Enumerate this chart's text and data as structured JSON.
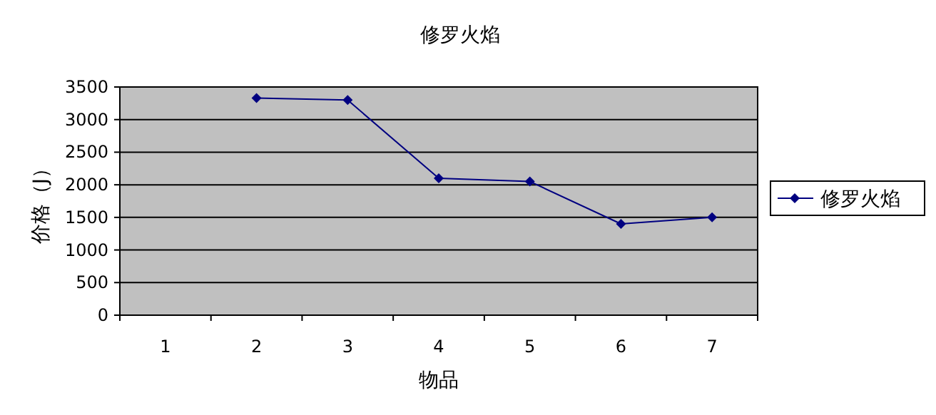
{
  "chart_data": {
    "type": "line",
    "title": "修罗火焰",
    "xlabel": "物品",
    "ylabel": "价格（J）",
    "categories": [
      "1",
      "2",
      "3",
      "4",
      "5",
      "6",
      "7"
    ],
    "series": [
      {
        "name": "修罗火焰",
        "color": "#000080",
        "values": [
          null,
          3330,
          3300,
          2100,
          2050,
          1400,
          1500
        ]
      }
    ],
    "ylim": [
      0,
      3500
    ],
    "yticks": [
      0,
      500,
      1000,
      1500,
      2000,
      2500,
      3000,
      3500
    ],
    "grid": "y",
    "legend": "right",
    "marker": "diamond",
    "line_style": "solid"
  }
}
